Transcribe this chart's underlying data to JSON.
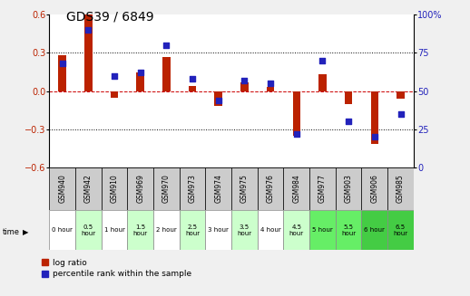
{
  "title": "GDS39 / 6849",
  "samples": [
    "GSM940",
    "GSM942",
    "GSM910",
    "GSM969",
    "GSM970",
    "GSM973",
    "GSM974",
    "GSM975",
    "GSM976",
    "GSM984",
    "GSM977",
    "GSM903",
    "GSM906",
    "GSM985"
  ],
  "time_labels": [
    "0 hour",
    "0.5\nhour",
    "1 hour",
    "1.5\nhour",
    "2 hour",
    "2.5\nhour",
    "3 hour",
    "3.5\nhour",
    "4 hour",
    "4.5\nhour",
    "5 hour",
    "5.5\nhour",
    "6 hour",
    "6.5\nhour"
  ],
  "log_ratio": [
    0.28,
    0.6,
    -0.05,
    0.15,
    0.27,
    0.04,
    -0.12,
    0.07,
    0.03,
    -0.35,
    0.13,
    -0.1,
    -0.42,
    -0.06
  ],
  "percentile": [
    68,
    90,
    60,
    62,
    80,
    58,
    44,
    57,
    55,
    22,
    70,
    30,
    20,
    35
  ],
  "time_colors": [
    "#ffffff",
    "#ccffcc",
    "#ffffff",
    "#ccffcc",
    "#ffffff",
    "#ccffcc",
    "#ffffff",
    "#ccffcc",
    "#ffffff",
    "#ccffcc",
    "#66ee66",
    "#66ee66",
    "#44cc44",
    "#44cc44"
  ],
  "bar_color": "#bb2200",
  "dot_color": "#2222bb",
  "ylim_left": [
    -0.6,
    0.6
  ],
  "ylim_right": [
    0,
    100
  ],
  "yticks_left": [
    -0.6,
    -0.3,
    0.0,
    0.3,
    0.6
  ],
  "yticks_right": [
    0,
    25,
    50,
    75,
    100
  ],
  "bg_color": "#f0f0f0",
  "plot_bg": "#ffffff",
  "red_line_color": "#cc0000",
  "title_fontsize": 10,
  "tick_fontsize": 7,
  "sample_bg": "#cccccc"
}
